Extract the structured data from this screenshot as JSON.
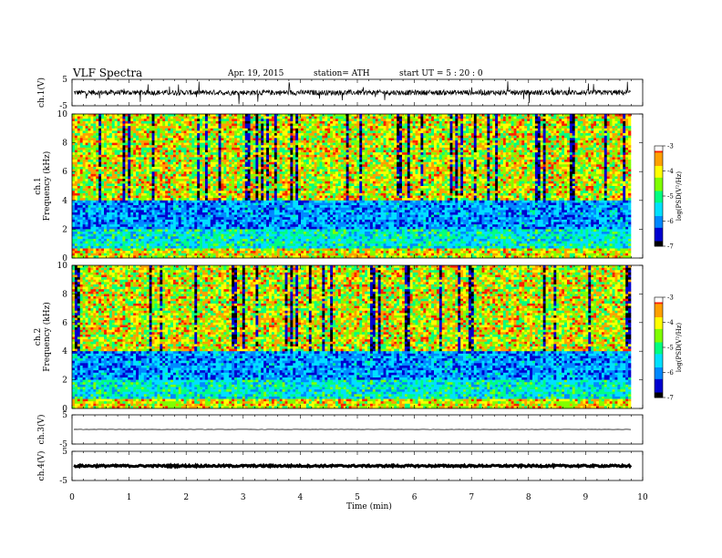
{
  "header": {
    "title": "VLF  Spectra",
    "date": "Apr. 19,  2015",
    "station": "station= ATH",
    "start_ut": "start  UT  =   5  : 20 : 0"
  },
  "colors": {
    "spectrum_scale": [
      "#000000",
      "#0000d0",
      "#0088ff",
      "#00e0ff",
      "#00ff80",
      "#80ff00",
      "#ffff00",
      "#ffa000",
      "#ff2000",
      "#ffffff"
    ],
    "waveform": "#000000",
    "background": "#ffffff"
  },
  "chart_data": [
    {
      "type": "line",
      "panel": "ch1-waveform",
      "ylabel": "ch.1(V)",
      "yticks": [
        "5",
        "-5"
      ],
      "ylim": [
        -5,
        5
      ],
      "xlim": [
        0,
        9.8
      ],
      "description_values": {
        "baseline": 0.0,
        "amplitude_typical": 1.0,
        "spikes": true
      }
    },
    {
      "type": "heatmap",
      "panel": "ch1-spectrogram",
      "ylabel": "ch.1\nFrequency (kHz)",
      "ylabel_lines": [
        "ch.1",
        "Frequency  (kHz)"
      ],
      "yticks": [
        "0",
        "2",
        "4",
        "6",
        "8",
        "10"
      ],
      "ylim": [
        0,
        10
      ],
      "xlim": [
        0,
        9.8
      ],
      "colorbar": {
        "label": "log(PSD(V²/Hz)",
        "ticks": [
          "-3",
          "-4",
          "-5",
          "-6",
          "-7"
        ],
        "range": [
          -7,
          -3
        ]
      },
      "low_band_kHz": [
        0,
        4
      ],
      "high_band_kHz": [
        4,
        10
      ]
    },
    {
      "type": "heatmap",
      "panel": "ch2-spectrogram",
      "ylabel_lines": [
        "ch.2",
        "Frequency  (kHz)"
      ],
      "yticks": [
        "0",
        "2",
        "4",
        "6",
        "8",
        "10"
      ],
      "ylim": [
        0,
        10
      ],
      "xlim": [
        0,
        9.8
      ],
      "colorbar": {
        "label": "log(PSD(V²/Hz)",
        "ticks": [
          "-3",
          "-4",
          "-5",
          "-6",
          "-7"
        ],
        "range": [
          -7,
          -3
        ]
      }
    },
    {
      "type": "line",
      "panel": "ch3-waveform",
      "ylabel": "ch.3(V)",
      "yticks": [
        "5",
        "-5"
      ],
      "ylim": [
        -5,
        5
      ],
      "xlim": [
        0,
        9.8
      ],
      "description_values": {
        "baseline": 0.0,
        "amplitude_typical": 0.05
      }
    },
    {
      "type": "line",
      "panel": "ch4-waveform",
      "ylabel": "ch.4(V)",
      "yticks": [
        "5",
        "-5"
      ],
      "ylim": [
        -5,
        5
      ],
      "xlim": [
        0,
        9.8
      ],
      "description_values": {
        "baseline": 0.0,
        "amplitude_typical": 0.3
      }
    }
  ],
  "xaxis": {
    "label": "Time  (min)",
    "ticks": [
      "0",
      "1",
      "2",
      "3",
      "4",
      "5",
      "6",
      "7",
      "8",
      "9",
      "10"
    ]
  }
}
